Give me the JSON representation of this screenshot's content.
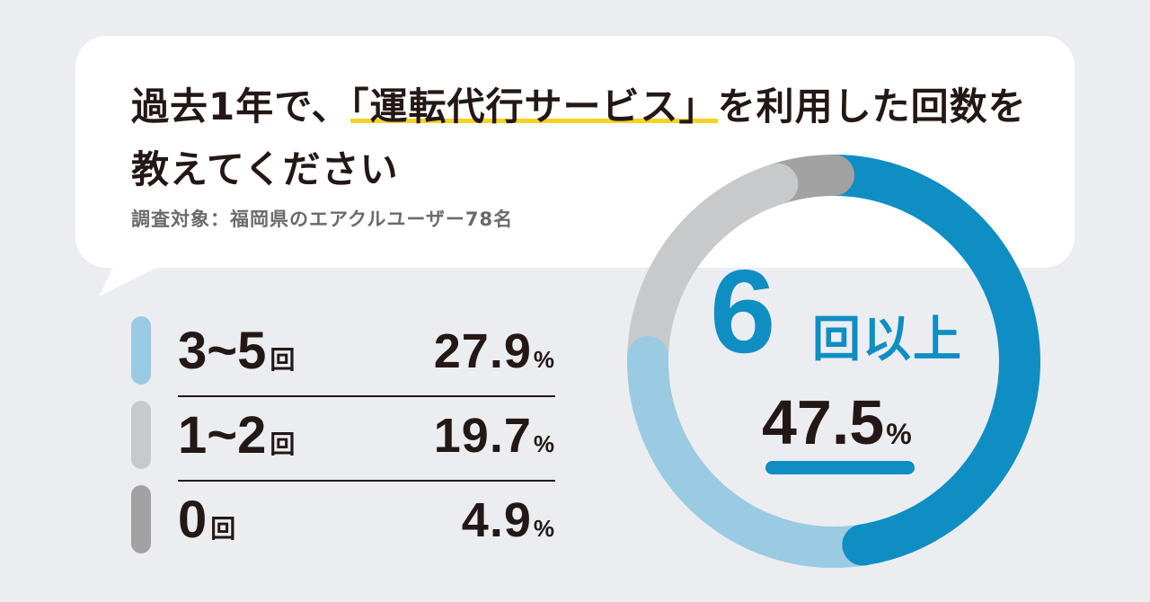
{
  "title_pre": "過去1年で、",
  "title_highlight": "「運転代行サービス」",
  "title_post": "を利用した回数を教えてください",
  "subtitle": "調査対象：福岡県のエアクルユーザー78名",
  "colors": {
    "six_plus": "#0e8ec3",
    "three_five": "#9bcae3",
    "one_two": "#c8c9ca",
    "zero": "#a2a2a2",
    "highlight": "#f5d322"
  },
  "chart_data": {
    "type": "pie",
    "variant": "donut",
    "start_at": "top",
    "direction": "clockwise",
    "unit": "%",
    "slices": [
      {
        "label": "6回以上",
        "value": 47.5,
        "color": "#0e8ec3"
      },
      {
        "label": "3~5回",
        "value": 27.9,
        "color": "#9bcae3"
      },
      {
        "label": "1~2回",
        "value": 19.7,
        "color": "#c8c9ca"
      },
      {
        "label": "0回",
        "value": 4.9,
        "color": "#a2a2a2"
      }
    ]
  },
  "legend": [
    {
      "num": "3~5",
      "unit": "回",
      "value": "27.9",
      "pct": "%",
      "color": "#9bcae3"
    },
    {
      "num": "1~2",
      "unit": "回",
      "value": "19.7",
      "pct": "%",
      "color": "#c8c9ca"
    },
    {
      "num": "0",
      "unit": "回",
      "value": "4.9",
      "pct": "%",
      "color": "#a2a2a2"
    }
  ],
  "center": {
    "num": "6",
    "category": "回以上",
    "value": "47.5",
    "pct": "%"
  }
}
